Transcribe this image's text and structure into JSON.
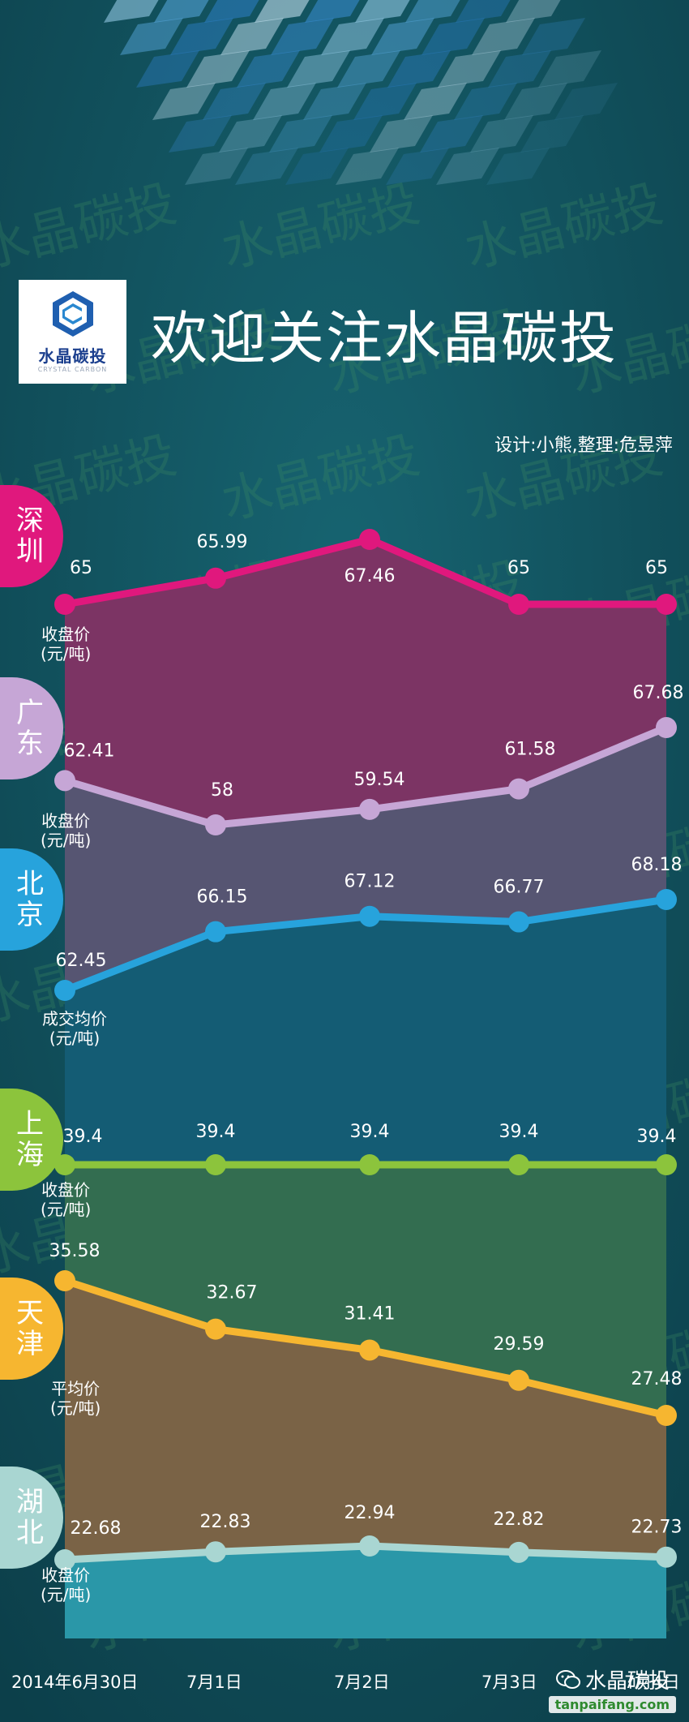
{
  "header": {
    "logo_cn": "水晶碳投",
    "logo_en": "CRYSTAL CARBON",
    "title": "欢迎关注水晶碳投",
    "credit": "设计:小熊,整理:危昱萍"
  },
  "watermark": {
    "text": "水晶碳投",
    "brand": "水晶碳投",
    "url": "tanpaifang.com"
  },
  "chart_data": {
    "type": "area",
    "x": [
      "2014年6月30日",
      "7月1日",
      "7月2日",
      "7月3日",
      "7月4日"
    ],
    "series": [
      {
        "name": "深圳",
        "unit": "收盘价\n(元/吨)",
        "values": [
          65,
          65.99,
          67.46,
          65,
          65
        ],
        "color": "#e0187d",
        "fill": "#7c3464"
      },
      {
        "name": "广东",
        "unit": "收盘价\n(元/吨)",
        "values": [
          62.41,
          58,
          59.54,
          61.58,
          67.68
        ],
        "color": "#c6a6d6",
        "fill": "#565572"
      },
      {
        "name": "北京",
        "unit": "成交均价\n(元/吨)",
        "values": [
          62.45,
          66.15,
          67.12,
          66.77,
          68.18
        ],
        "color": "#27a3dc",
        "fill": "#145c74"
      },
      {
        "name": "上海",
        "unit": "收盘价\n(元/吨)",
        "values": [
          39.4,
          39.4,
          39.4,
          39.4,
          39.4
        ],
        "color": "#8cc43c",
        "fill": "#336d50"
      },
      {
        "name": "天津",
        "unit": "平均价\n(元/吨)",
        "values": [
          35.58,
          32.67,
          31.41,
          29.59,
          27.48
        ],
        "color": "#f6b630",
        "fill": "#7a6346"
      },
      {
        "name": "湖北",
        "unit": "收盘价\n(元/吨)",
        "values": [
          22.68,
          22.83,
          22.94,
          22.82,
          22.73
        ],
        "color": "#a9d6d2",
        "fill": "#2a97a8"
      }
    ]
  }
}
